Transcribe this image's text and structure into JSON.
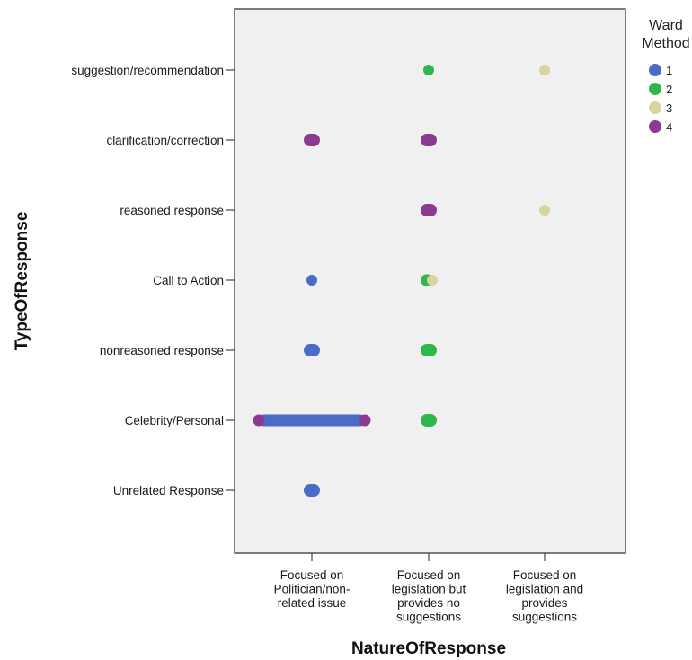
{
  "chart_data": {
    "type": "scatter",
    "title": "",
    "xlabel": "NatureOfResponse",
    "ylabel": "TypeOfResponse",
    "x_categories": [
      [
        "Focused on",
        "Politician/non-",
        "related issue"
      ],
      [
        "Focused on",
        "legislation but",
        "provides no",
        "suggestions"
      ],
      [
        "Focused on",
        "legislation and",
        "provides",
        "suggestions"
      ]
    ],
    "y_categories": [
      "suggestion/recommendation",
      "clarification/correction",
      "reasoned response",
      "Call to Action",
      "nonreasoned response",
      "Celebrity/Personal",
      "Unrelated Response"
    ],
    "legend": {
      "title": [
        "Ward",
        "Method"
      ],
      "placement": "top-right",
      "entries": [
        {
          "label": "1",
          "color": "#4a6cc7"
        },
        {
          "label": "2",
          "color": "#2db84c"
        },
        {
          "label": "3",
          "color": "#d9d3a0"
        },
        {
          "label": "4",
          "color": "#8b3a8f"
        }
      ]
    },
    "grid": false,
    "points": [
      {
        "x": 1,
        "y": "suggestion/recommendation",
        "cluster": "2"
      },
      {
        "x": 2,
        "y": "suggestion/recommendation",
        "cluster": "3"
      },
      {
        "x": 0,
        "y": "clarification/correction",
        "cluster": "4"
      },
      {
        "x": 1,
        "y": "clarification/correction",
        "cluster": "4"
      },
      {
        "x": 1,
        "y": "reasoned response",
        "cluster": "4"
      },
      {
        "x": 2,
        "y": "reasoned response",
        "cluster": "3"
      },
      {
        "x": 0,
        "y": "Call to Action",
        "cluster": "1"
      },
      {
        "x": 1,
        "y": "Call to Action",
        "cluster": "2"
      },
      {
        "x": 1,
        "y": "Call to Action",
        "cluster": "3"
      },
      {
        "x": 0,
        "y": "nonreasoned response",
        "cluster": "1"
      },
      {
        "x": 1,
        "y": "nonreasoned response",
        "cluster": "2"
      },
      {
        "x": 0,
        "y": "Celebrity/Personal",
        "cluster": "1"
      },
      {
        "x": 0,
        "y": "Celebrity/Personal",
        "cluster": "4"
      },
      {
        "x": 1,
        "y": "Celebrity/Personal",
        "cluster": "2"
      },
      {
        "x": 0,
        "y": "Unrelated Response",
        "cluster": "1"
      }
    ]
  }
}
